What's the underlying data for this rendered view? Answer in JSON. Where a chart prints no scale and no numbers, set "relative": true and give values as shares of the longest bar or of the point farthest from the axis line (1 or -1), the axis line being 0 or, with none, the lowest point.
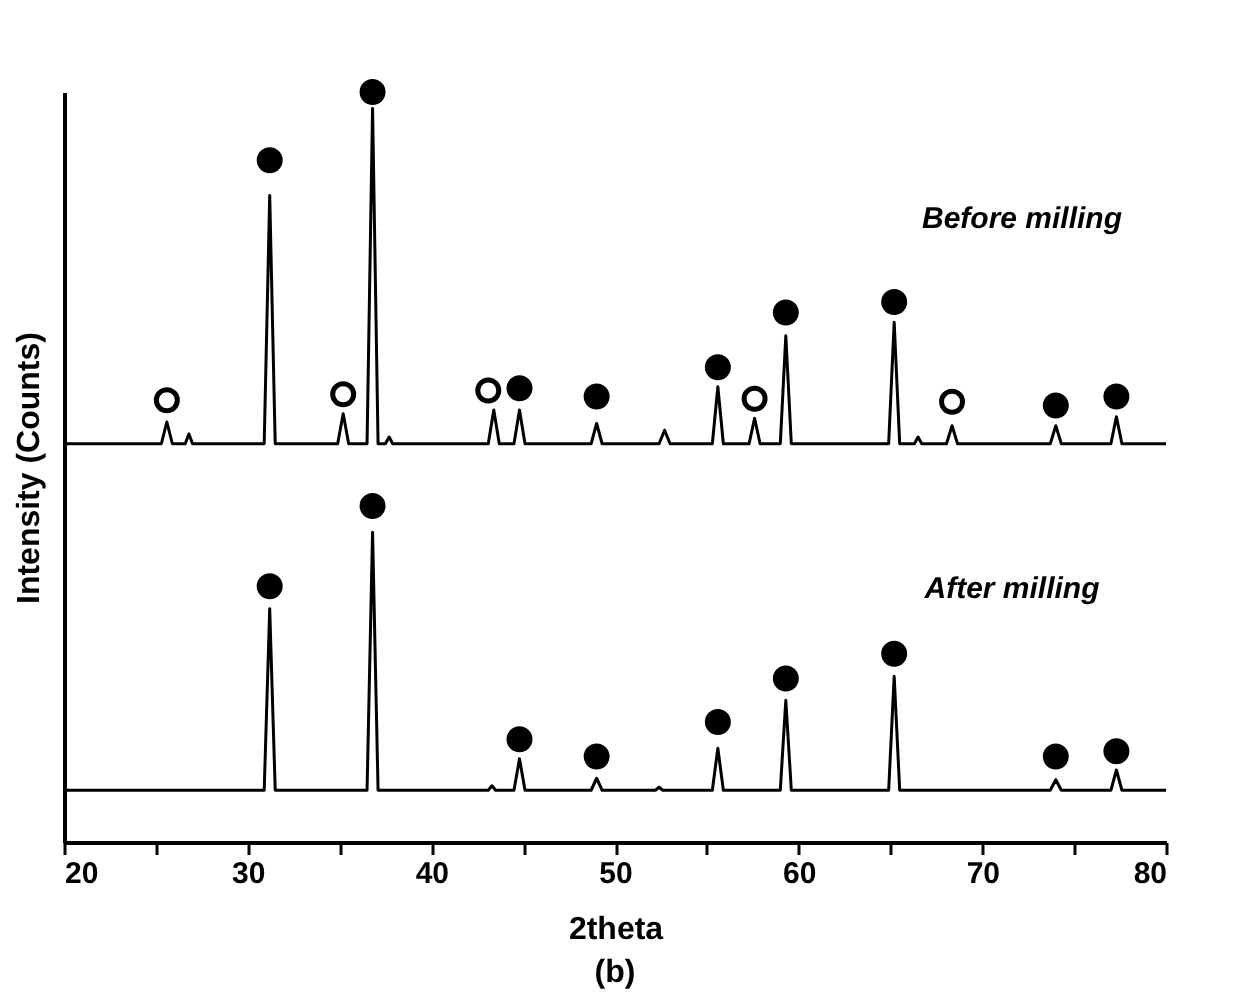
{
  "chart_data": {
    "type": "line",
    "relative": true,
    "xlabel": "2theta",
    "ylabel": "Intensity (Counts)",
    "xlim": [
      20,
      80
    ],
    "xticks": [
      20,
      {
        "value": 25,
        "label": null
      },
      30,
      {
        "value": 35,
        "label": null
      },
      40,
      {
        "value": 45,
        "label": null
      },
      50,
      {
        "value": 55,
        "label": null
      },
      60,
      {
        "value": 65,
        "label": null
      },
      70,
      {
        "value": 75,
        "label": null
      },
      80
    ],
    "series": [
      {
        "color": "#000000",
        "x": [
          20,
          25.3,
          25.6,
          25.9,
          26.6,
          26.8,
          27.0,
          30.9,
          31.2,
          31.5,
          34.9,
          35.2,
          35.5,
          36.5,
          36.8,
          37.1,
          37.5,
          37.7,
          37.9,
          43.1,
          43.4,
          43.7,
          44.5,
          44.8,
          45.1,
          48.7,
          49.0,
          49.3,
          52.4,
          52.7,
          53.0,
          55.3,
          55.6,
          55.9,
          57.3,
          57.6,
          57.9,
          59.0,
          59.3,
          59.6,
          64.9,
          65.2,
          65.5,
          66.3,
          66.5,
          66.7,
          68.05,
          68.35,
          68.65,
          73.7,
          74.0,
          74.3,
          77.0,
          77.3,
          77.6,
          80
        ],
        "values": [
          0.531,
          0.531,
          0.56,
          0.531,
          0.531,
          0.544,
          0.531,
          0.531,
          0.862,
          0.531,
          0.531,
          0.571,
          0.531,
          0.531,
          0.978,
          0.531,
          0.531,
          0.54,
          0.531,
          0.531,
          0.576,
          0.531,
          0.531,
          0.576,
          0.531,
          0.531,
          0.558,
          0.531,
          0.531,
          0.549,
          0.531,
          0.531,
          0.607,
          0.531,
          0.531,
          0.565,
          0.531,
          0.531,
          0.675,
          0.531,
          0.531,
          0.693,
          0.531,
          0.531,
          0.54,
          0.531,
          0.531,
          0.555,
          0.531,
          0.531,
          0.555,
          0.531,
          0.531,
          0.567,
          0.531,
          0.531
        ]
      },
      {
        "color": "#000000",
        "x": [
          20,
          30.9,
          31.2,
          31.5,
          36.5,
          36.8,
          37.1,
          43.1,
          43.3,
          43.5,
          44.5,
          44.8,
          45.1,
          48.7,
          49.0,
          49.3,
          52.2,
          52.4,
          52.6,
          55.3,
          55.6,
          55.9,
          59.0,
          59.3,
          59.6,
          64.9,
          65.2,
          65.5,
          73.7,
          74.0,
          74.3,
          77.0,
          77.3,
          77.6,
          80
        ],
        "values": [
          0.069,
          0.069,
          0.311,
          0.069,
          0.069,
          0.413,
          0.069,
          0.069,
          0.075,
          0.069,
          0.069,
          0.111,
          0.069,
          0.069,
          0.085,
          0.069,
          0.069,
          0.073,
          0.069,
          0.069,
          0.125,
          0.069,
          0.069,
          0.189,
          0.069,
          0.069,
          0.221,
          0.069,
          0.069,
          0.083,
          0.069,
          0.069,
          0.096,
          0.069,
          0.069
        ]
      },
      {
        "type": "scatter",
        "marker": "circle",
        "color": "#000000",
        "x": [
          31.2,
          36.8,
          44.8,
          49.0,
          55.6,
          59.3,
          65.2,
          74.0,
          77.3,
          31.2,
          36.8,
          44.8,
          49.0,
          55.6,
          59.3,
          65.2,
          74.0,
          77.3
        ],
        "values": [
          0.909,
          1.0,
          0.605,
          0.594,
          0.633,
          0.706,
          0.72,
          0.582,
          0.594,
          0.341,
          0.448,
          0.137,
          0.114,
          0.16,
          0.218,
          0.251,
          0.114,
          0.121
        ]
      },
      {
        "type": "scatter",
        "marker": "circle",
        "color": "#ffffff",
        "x": [
          25.6,
          35.2,
          43.1,
          57.6,
          68.35
        ],
        "values": [
          0.589,
          0.597,
          0.602,
          0.591,
          0.587
        ]
      }
    ],
    "annotations": [
      "Before milling",
      "After milling",
      "(b)"
    ]
  }
}
